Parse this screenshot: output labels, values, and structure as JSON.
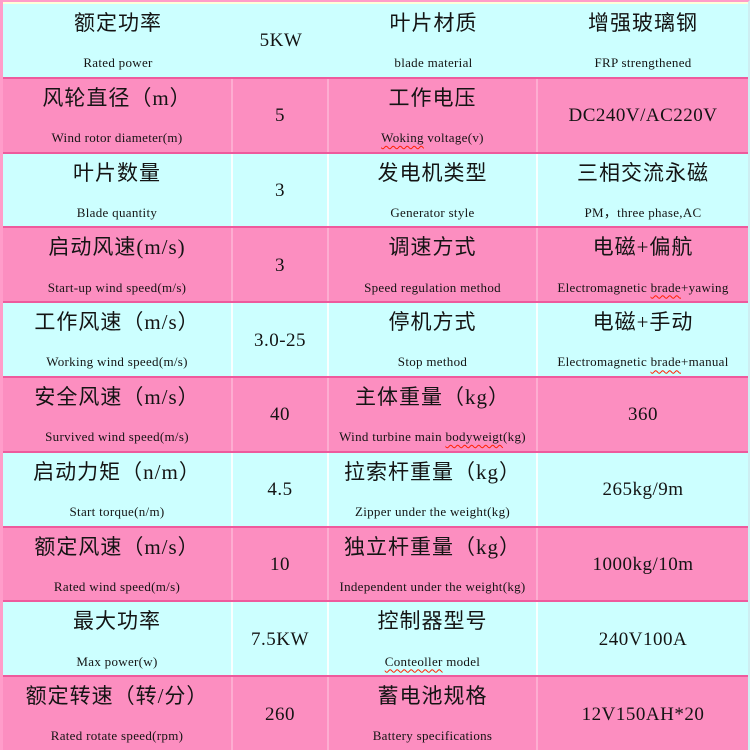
{
  "palette": {
    "row_cyan": "#ccffff",
    "row_pink": "#fc8ec0",
    "outer_pink": "#ff9dca",
    "top_inner_yellow": "#ffffd8",
    "row_separator": "#ee5a9d",
    "right_edge": "#cdeef2",
    "text": "#141414",
    "squiggle_red": "#ff1f00"
  },
  "table": {
    "rows": [
      {
        "bg": "cyan",
        "cells": [
          {
            "zh": "额定功率",
            "en": "Rated power"
          },
          {
            "val": "5KW"
          },
          {
            "zh": "叶片材质",
            "en": "blade material"
          },
          {
            "zh": "增强玻璃钢",
            "en": "FRP strengthened"
          }
        ]
      },
      {
        "bg": "pink",
        "cells": [
          {
            "zh": "风轮直径（m）",
            "en": "Wind rotor diameter(m)"
          },
          {
            "val": "5"
          },
          {
            "zh": "工作电压",
            "en": "Woking voltage(v)",
            "typo": "Woking"
          },
          {
            "val": "DC240V/AC220V"
          }
        ]
      },
      {
        "bg": "cyan",
        "cells": [
          {
            "zh": "叶片数量",
            "en": "Blade quantity"
          },
          {
            "val": "3"
          },
          {
            "zh": "发电机类型",
            "en": "Generator style"
          },
          {
            "zh": "三相交流永磁",
            "en": "PM，three phase,AC"
          }
        ]
      },
      {
        "bg": "pink",
        "cells": [
          {
            "zh": "启动风速(m/s)",
            "en": "Start-up wind speed(m/s)"
          },
          {
            "val": "3"
          },
          {
            "zh": "调速方式",
            "en": "Speed regulation method"
          },
          {
            "zh": "电磁+偏航",
            "en": "Electromagnetic brade+yawing",
            "typo": "brade"
          }
        ]
      },
      {
        "bg": "cyan",
        "cells": [
          {
            "zh": "工作风速（m/s）",
            "en": "Working wind speed(m/s)"
          },
          {
            "val": "3.0-25"
          },
          {
            "zh": "停机方式",
            "en": "Stop method"
          },
          {
            "zh": "电磁+手动",
            "en": "Electromagnetic brade+manual",
            "typo": "brade"
          }
        ]
      },
      {
        "bg": "pink",
        "cells": [
          {
            "zh": "安全风速（m/s）",
            "en": "Survived wind speed(m/s)"
          },
          {
            "val": "40"
          },
          {
            "zh": "主体重量（kg）",
            "en": "Wind turbine main bodyweigt(kg)",
            "typo": "bodyweigt"
          },
          {
            "val": "360"
          }
        ]
      },
      {
        "bg": "cyan",
        "cells": [
          {
            "zh": "启动力矩（n/m）",
            "en": "Start torque(n/m)"
          },
          {
            "val": "4.5"
          },
          {
            "zh": "拉索杆重量（kg）",
            "en": "Zipper under the weight(kg)"
          },
          {
            "val": "265kg/9m"
          }
        ]
      },
      {
        "bg": "pink",
        "cells": [
          {
            "zh": "额定风速（m/s）",
            "en": "Rated wind speed(m/s)"
          },
          {
            "val": "10"
          },
          {
            "zh": "独立杆重量（kg）",
            "en": "Independent under the weight(kg)"
          },
          {
            "val": "1000kg/10m"
          }
        ]
      },
      {
        "bg": "cyan",
        "cells": [
          {
            "zh": "最大功率",
            "en": "Max power(w)"
          },
          {
            "val": "7.5KW"
          },
          {
            "zh": "控制器型号",
            "en": "Conteoller model",
            "typo": "Conteoller"
          },
          {
            "val": "240V100A"
          }
        ]
      },
      {
        "bg": "pink",
        "cells": [
          {
            "zh": "额定转速（转/分）",
            "en": "Rated rotate speed(rpm)"
          },
          {
            "val": "260"
          },
          {
            "zh": "蓄电池规格",
            "en": "Battery specifications"
          },
          {
            "val": "12V150AH*20"
          }
        ]
      }
    ]
  }
}
